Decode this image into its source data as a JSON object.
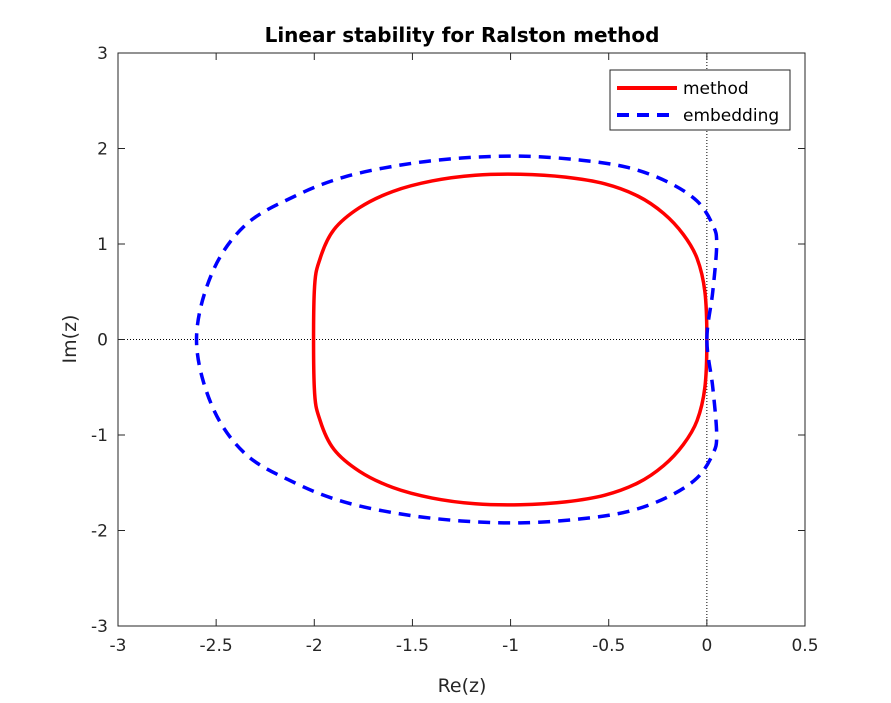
{
  "chart_data": {
    "type": "line",
    "title": "Linear stability for Ralston method",
    "xlabel": "Re(z)",
    "ylabel": "Im(z)",
    "xlim": [
      -3,
      0.5
    ],
    "ylim": [
      -3,
      3
    ],
    "xticks": [
      -3,
      -2.5,
      -2,
      -1.5,
      -1,
      -0.5,
      0,
      0.5
    ],
    "yticks": [
      -3,
      -2,
      -1,
      0,
      1,
      2,
      3
    ],
    "xtick_labels": [
      "-3",
      "-2.5",
      "-2",
      "-1.5",
      "-1",
      "-0.5",
      "0",
      "0.5"
    ],
    "ytick_labels": [
      "-3",
      "-2",
      "-1",
      "0",
      "1",
      "2",
      "3"
    ],
    "grid": false,
    "reference_lines": {
      "x": 0,
      "y": 0,
      "style": "dotted"
    },
    "legend_position": "top-right",
    "series": [
      {
        "name": "method",
        "color": "#ff0000",
        "style": "solid",
        "x": [
          0.0,
          -0.01,
          -0.05,
          -0.12,
          -0.22,
          -0.35,
          -0.52,
          -0.72,
          -0.95,
          -1.18,
          -1.4,
          -1.6,
          -1.77,
          -1.9,
          -1.97,
          -2.0,
          -2.0,
          -1.97,
          -1.9,
          -1.77,
          -1.6,
          -1.4,
          -1.18,
          -0.95,
          -0.72,
          -0.52,
          -0.35,
          -0.22,
          -0.12,
          -0.05,
          -0.01,
          0.0
        ],
        "y": [
          0.0,
          0.5,
          0.85,
          1.1,
          1.32,
          1.5,
          1.63,
          1.7,
          1.73,
          1.72,
          1.66,
          1.55,
          1.38,
          1.15,
          0.85,
          0.5,
          -0.5,
          -0.85,
          -1.15,
          -1.38,
          -1.55,
          -1.66,
          -1.72,
          -1.73,
          -1.7,
          -1.63,
          -1.5,
          -1.32,
          -1.1,
          -0.85,
          -0.5,
          0.0
        ]
      },
      {
        "name": "embedding",
        "color": "#0000ff",
        "style": "dashed",
        "x": [
          0.0,
          0.03,
          0.05,
          0.03,
          -0.05,
          -0.2,
          -0.4,
          -0.65,
          -0.95,
          -1.25,
          -1.55,
          -1.85,
          -2.1,
          -2.35,
          -2.52,
          -2.6,
          -2.52,
          -2.35,
          -2.1,
          -1.85,
          -1.55,
          -1.25,
          -0.95,
          -0.65,
          -0.4,
          -0.2,
          -0.05,
          0.03,
          0.05,
          0.03,
          0.0
        ],
        "y": [
          0.0,
          0.5,
          1.0,
          1.2,
          1.45,
          1.65,
          1.8,
          1.88,
          1.92,
          1.9,
          1.83,
          1.7,
          1.5,
          1.2,
          0.7,
          0.0,
          -0.7,
          -1.2,
          -1.5,
          -1.7,
          -1.83,
          -1.9,
          -1.92,
          -1.88,
          -1.8,
          -1.65,
          -1.45,
          -1.2,
          -1.0,
          -0.5,
          0.0
        ]
      }
    ]
  }
}
